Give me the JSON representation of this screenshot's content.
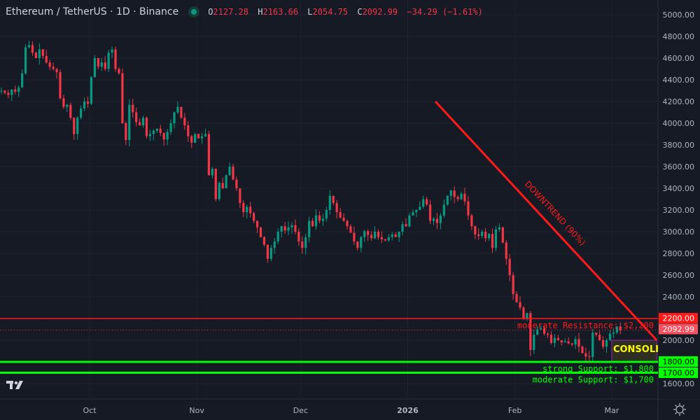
{
  "header": {
    "symbol": "Ethereum / TetherUS · 1D · Binance",
    "market_status_color": "#089981",
    "ohlc": {
      "o_label": "O",
      "o": "2127.28",
      "h_label": "H",
      "h": "2163.66",
      "l_label": "L",
      "l": "2054.75",
      "c_label": "C",
      "c": "2092.99",
      "change": "−34.29 (−1.61%)"
    }
  },
  "chart_data": {
    "type": "candlestick",
    "title": "Ethereum / TetherUS · 1D · Binance",
    "ylim": [
      1540,
      5000
    ],
    "y_ticks": [
      "1600.00",
      "2000.00",
      "2200.00",
      "2400.00",
      "2600.00",
      "2800.00",
      "3000.00",
      "3200.00",
      "3400.00",
      "3600.00",
      "3800.00",
      "4000.00",
      "4200.00",
      "4400.00",
      "4600.00",
      "4800.00",
      "5000.00"
    ],
    "x_ticks": [
      {
        "label": "Oct",
        "date": "2025-10-01",
        "bold": false
      },
      {
        "label": "Nov",
        "date": "2025-11-01",
        "bold": false
      },
      {
        "label": "Dec",
        "date": "2025-12-01",
        "bold": false
      },
      {
        "label": "2026",
        "date": "2026-01-01",
        "bold": true
      },
      {
        "label": "Feb",
        "date": "2026-02-01",
        "bold": false
      },
      {
        "label": "Mar",
        "date": "2026-03-01",
        "bold": false
      }
    ],
    "grid": true,
    "up_color": "#089981",
    "down_color": "#f23645",
    "closes": [
      4300,
      4280,
      4260,
      4310,
      4290,
      4330,
      4460,
      4700,
      4720,
      4650,
      4600,
      4680,
      4620,
      4560,
      4520,
      4500,
      4470,
      4230,
      4150,
      4170,
      4050,
      3900,
      4050,
      4135,
      4200,
      4180,
      4425,
      4600,
      4520,
      4560,
      4500,
      4650,
      4680,
      4500,
      4460,
      4000,
      3845,
      4170,
      4100,
      4010,
      3980,
      4050,
      3880,
      3900,
      3930,
      3950,
      3910,
      3850,
      3920,
      4000,
      4100,
      4150,
      4050,
      3980,
      3880,
      3820,
      3900,
      3860,
      3880,
      3900,
      3520,
      3580,
      3300,
      3450,
      3400,
      3520,
      3600,
      3480,
      3400,
      3265,
      3180,
      3230,
      3170,
      3100,
      3040,
      2950,
      2880,
      2750,
      2850,
      2910,
      3000,
      3050,
      3010,
      3040,
      3060,
      3000,
      2910,
      2850,
      2950,
      3100,
      3050,
      3150,
      3100,
      3120,
      3200,
      3330,
      3265,
      3180,
      3130,
      3100,
      3050,
      2990,
      2910,
      2850,
      2950,
      3005,
      2970,
      2940,
      3000,
      2950,
      2930,
      2920,
      2950,
      2975,
      2950,
      3000,
      3070,
      3050,
      3150,
      3180,
      3200,
      3230,
      3300,
      3250,
      3100,
      3120,
      3080,
      3150,
      3250,
      3330,
      3380,
      3320,
      3300,
      3350,
      3280,
      3150,
      3050,
      2975,
      2960,
      3000,
      2940,
      2980,
      2850,
      3020,
      3040,
      2900,
      2750,
      2600,
      2425,
      2350,
      2300,
      2200,
      2250,
      1910,
      2050,
      2100,
      2110,
      2060,
      2050,
      1975,
      2020,
      2000,
      1980,
      1990,
      1970,
      1960,
      2010,
      1940,
      1880,
      1850,
      1845,
      2070,
      2050,
      2000,
      1940,
      2000,
      2060,
      2070,
      2127.28,
      2092.99
    ],
    "last_candle": {
      "open": 2127.28,
      "high": 2163.66,
      "low": 2054.75,
      "close": 2092.99
    },
    "last_price": {
      "value": 2092.99,
      "label": "2092.99",
      "color": "#f7525f"
    },
    "levels": [
      {
        "price": 2200,
        "label": "moderate Resistance: $2,200",
        "axis_label": "2200.00",
        "color": "#ff1a1a"
      },
      {
        "price": 1800,
        "label": "strong Support: $1,800",
        "axis_label": "1800.00",
        "color": "#00ff00"
      },
      {
        "price": 1700,
        "label": "moderate Support: $1,700",
        "axis_label": "1700.00",
        "color": "#00ff00"
      }
    ],
    "trendline": {
      "label": "DOWNTREND (90%)",
      "start": {
        "date": "2026-01-09",
        "price": 4200
      },
      "end": {
        "date": "2026-03-14",
        "price": 2000
      },
      "color": "#ff1a1a"
    },
    "zone": {
      "label": "CONSOLIDA",
      "label_color": "#ffff00",
      "start_date": "2026-03-01",
      "end_date": "2026-03-14",
      "top": 2000,
      "bottom": 1800,
      "border": "#9c27b0",
      "fill": "#2e2e22"
    }
  }
}
